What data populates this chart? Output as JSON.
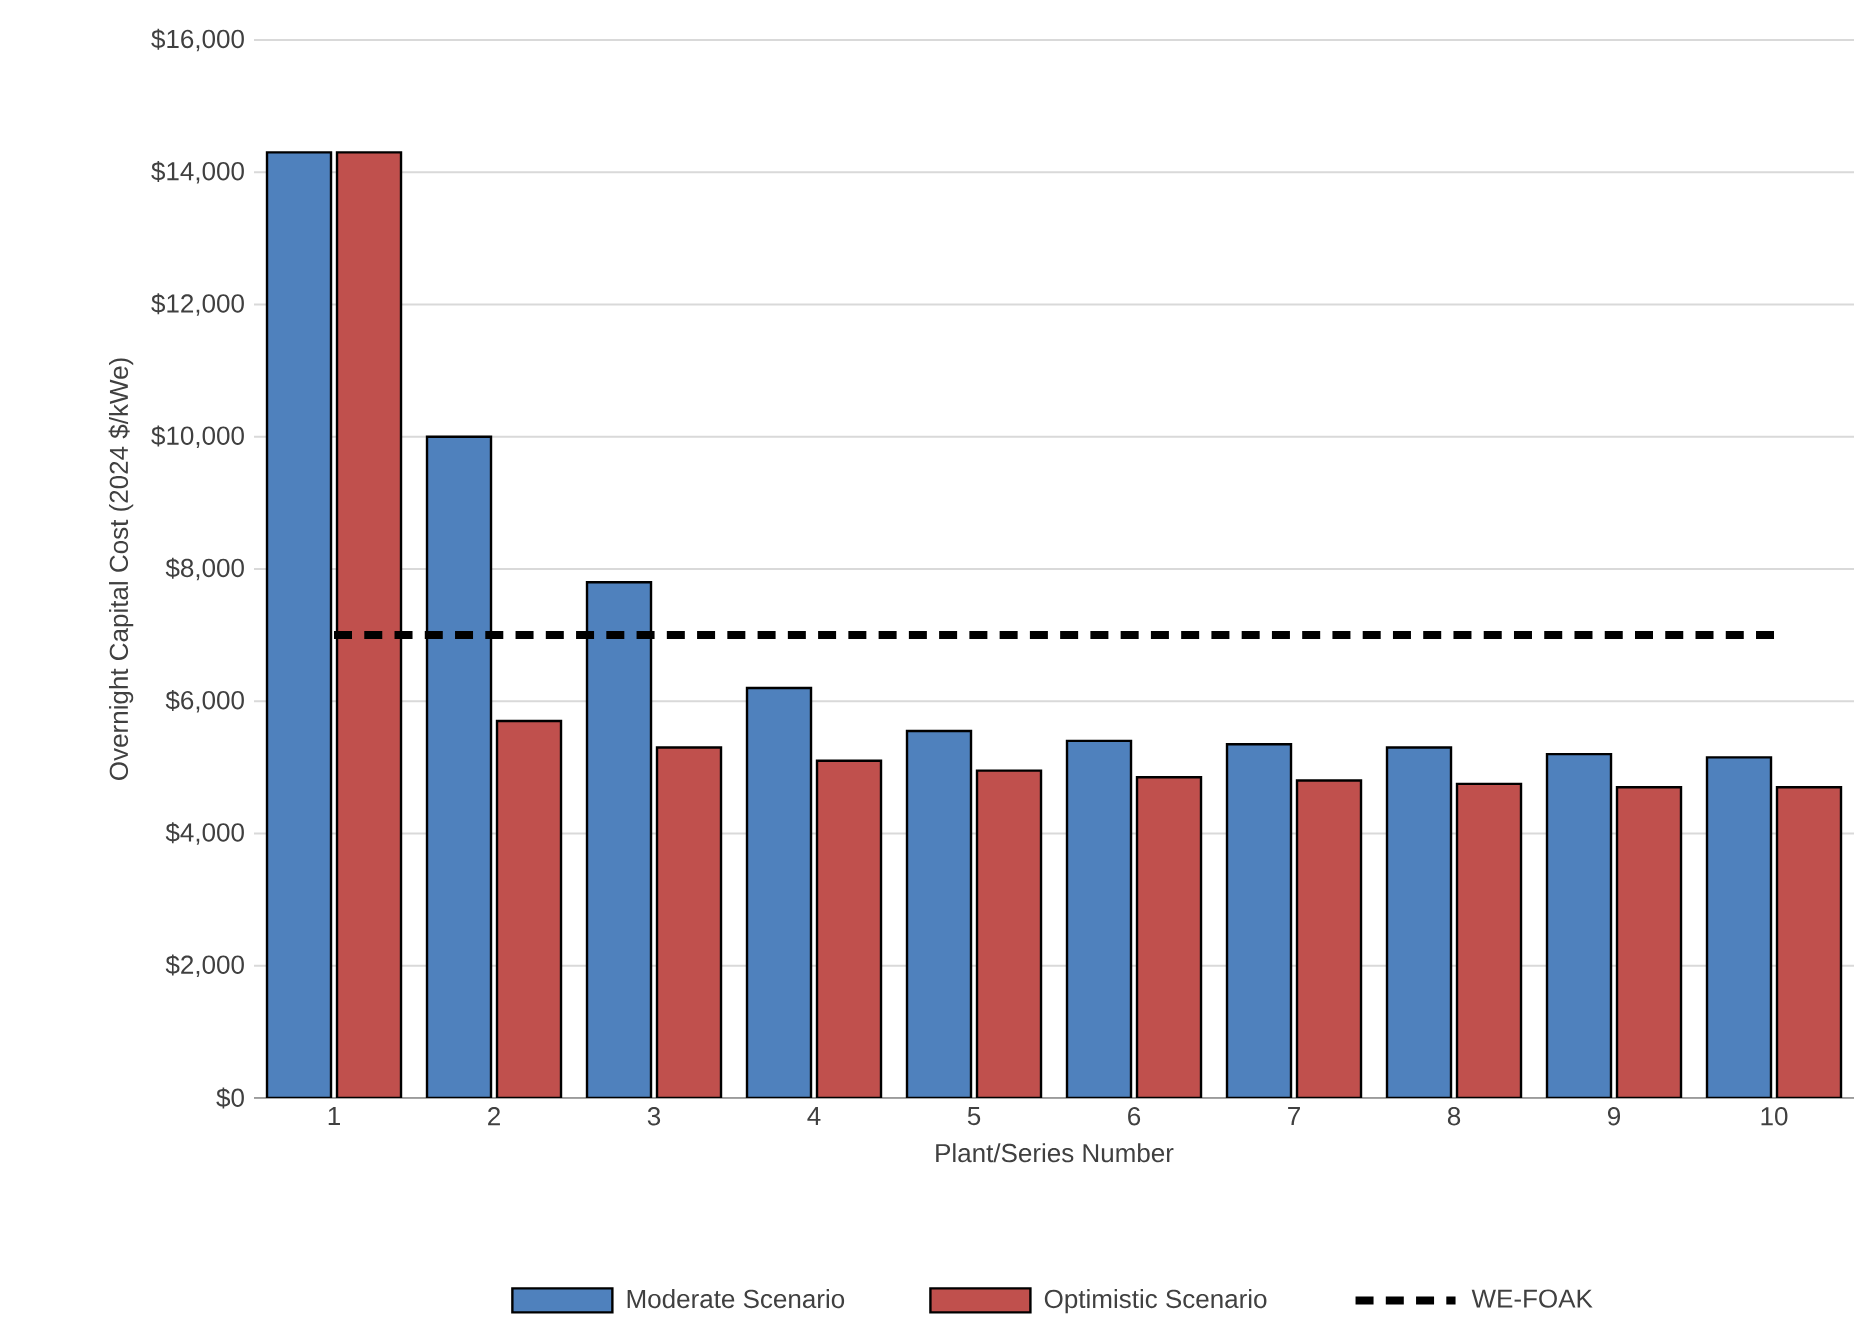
{
  "chart_data": {
    "type": "bar",
    "xlabel": "Plant/Series Number",
    "ylabel": "Overnight Capital Cost (2024 $/kWe)",
    "categories": [
      "1",
      "2",
      "3",
      "4",
      "5",
      "6",
      "7",
      "8",
      "9",
      "10"
    ],
    "series": [
      {
        "name": "Moderate Scenario",
        "type": "bar",
        "color": "#4f81bd",
        "values": [
          14300,
          10000,
          7800,
          6200,
          5550,
          5400,
          5350,
          5300,
          5200,
          5150
        ]
      },
      {
        "name": "Optimistic Scenario",
        "type": "bar",
        "color": "#c0504d",
        "values": [
          14300,
          5700,
          5300,
          5100,
          4950,
          4850,
          4800,
          4750,
          4700,
          4700
        ]
      },
      {
        "name": "WE-FOAK",
        "type": "line",
        "color": "#000000",
        "line_style": "dashed",
        "values": [
          7000,
          7000,
          7000,
          7000,
          7000,
          7000,
          7000,
          7000,
          7000,
          7000
        ]
      }
    ],
    "ylim": [
      0,
      16000
    ],
    "yticks": [
      {
        "value": 0,
        "label": "$0"
      },
      {
        "value": 2000,
        "label": "$2,000"
      },
      {
        "value": 4000,
        "label": "$4,000"
      },
      {
        "value": 6000,
        "label": "$6,000"
      },
      {
        "value": 8000,
        "label": "$8,000"
      },
      {
        "value": 10000,
        "label": "$10,000"
      },
      {
        "value": 12000,
        "label": "$12,000"
      },
      {
        "value": 14000,
        "label": "$14,000"
      },
      {
        "value": 16000,
        "label": "$16,000"
      }
    ],
    "grid": "y",
    "legend": "bottom"
  }
}
